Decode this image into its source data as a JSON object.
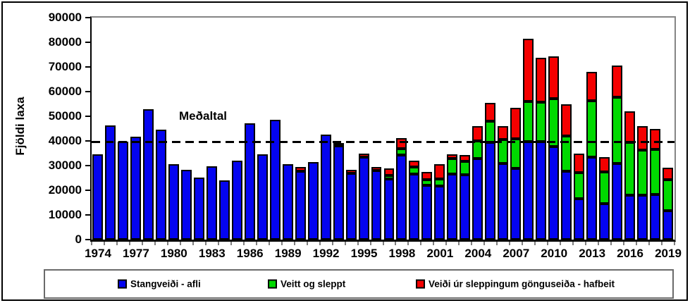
{
  "chart_data": {
    "type": "bar",
    "stacked": true,
    "ylabel": "Fjöldi laxa",
    "ylim": [
      0,
      90000
    ],
    "grid": false,
    "legend_position": "bottom",
    "y_tick_labels": [
      "0",
      "10000",
      "20000",
      "30000",
      "40000",
      "50000",
      "60000",
      "70000",
      "80000",
      "90000"
    ],
    "y_tick_values": [
      0,
      10000,
      20000,
      30000,
      40000,
      50000,
      60000,
      70000,
      80000,
      90000
    ],
    "categories": [
      1974,
      1975,
      1976,
      1977,
      1978,
      1979,
      1980,
      1981,
      1982,
      1983,
      1984,
      1985,
      1986,
      1987,
      1988,
      1989,
      1990,
      1991,
      1992,
      1993,
      1994,
      1995,
      1996,
      1997,
      1998,
      1999,
      2000,
      2001,
      2002,
      2003,
      2004,
      2005,
      2006,
      2007,
      2008,
      2009,
      2010,
      2011,
      2012,
      2013,
      2014,
      2015,
      2016,
      2017,
      2018,
      2019
    ],
    "x_tick_labels": [
      "1974",
      "1977",
      "1980",
      "1983",
      "1986",
      "1989",
      "1992",
      "1995",
      "1998",
      "2001",
      "2004",
      "2007",
      "2010",
      "2013",
      "2016",
      "2019"
    ],
    "series": [
      {
        "name": "Stangveiði - afli",
        "color": "#0404F0",
        "values": [
          34500,
          46400,
          39800,
          41800,
          53000,
          44500,
          30600,
          28400,
          25200,
          29800,
          24000,
          32000,
          47100,
          34500,
          48500,
          30500,
          27800,
          31400,
          42700,
          38100,
          27000,
          33300,
          28100,
          24500,
          34300,
          26700,
          22000,
          21700,
          26700,
          26200,
          33000,
          39300,
          30800,
          29000,
          39800,
          39700,
          37600,
          27800,
          16600,
          33500,
          14500,
          30800,
          18000,
          17900,
          18300,
          11600
        ]
      },
      {
        "name": "Veitt og sleppt",
        "color": "#00D900",
        "values": [
          0,
          0,
          0,
          0,
          0,
          0,
          0,
          0,
          0,
          0,
          0,
          0,
          0,
          0,
          0,
          0,
          0,
          0,
          0,
          0,
          0,
          0,
          0,
          1600,
          2500,
          2700,
          2300,
          2900,
          6200,
          5400,
          7000,
          8800,
          9900,
          12000,
          16200,
          16000,
          19600,
          14300,
          10500,
          22800,
          13000,
          27000,
          21500,
          18300,
          18400,
          12700
        ]
      },
      {
        "name": "Veiði úr sleppingum gönguseiða - hafbeit",
        "color": "#F40000",
        "values": [
          0,
          0,
          0,
          0,
          0,
          0,
          0,
          0,
          0,
          0,
          0,
          0,
          0,
          0,
          0,
          0,
          1500,
          0,
          0,
          1100,
          1300,
          1500,
          1400,
          2900,
          4300,
          2700,
          3100,
          5900,
          1600,
          2700,
          6100,
          7200,
          5300,
          12500,
          25500,
          18100,
          17200,
          12700,
          7700,
          11700,
          6000,
          12900,
          12400,
          9700,
          8100,
          4800
        ]
      }
    ],
    "average_line": {
      "label": "Meðaltal",
      "value": 39700,
      "style": "dashed",
      "color": "#000000"
    }
  },
  "legend": {
    "items": [
      {
        "label": "Stangveiði - afli",
        "color": "#0404F0"
      },
      {
        "label": "Veitt og sleppt",
        "color": "#00D900"
      },
      {
        "label": "Veiði úr sleppingum gönguseiða - hafbeit",
        "color": "#F40000"
      }
    ]
  }
}
